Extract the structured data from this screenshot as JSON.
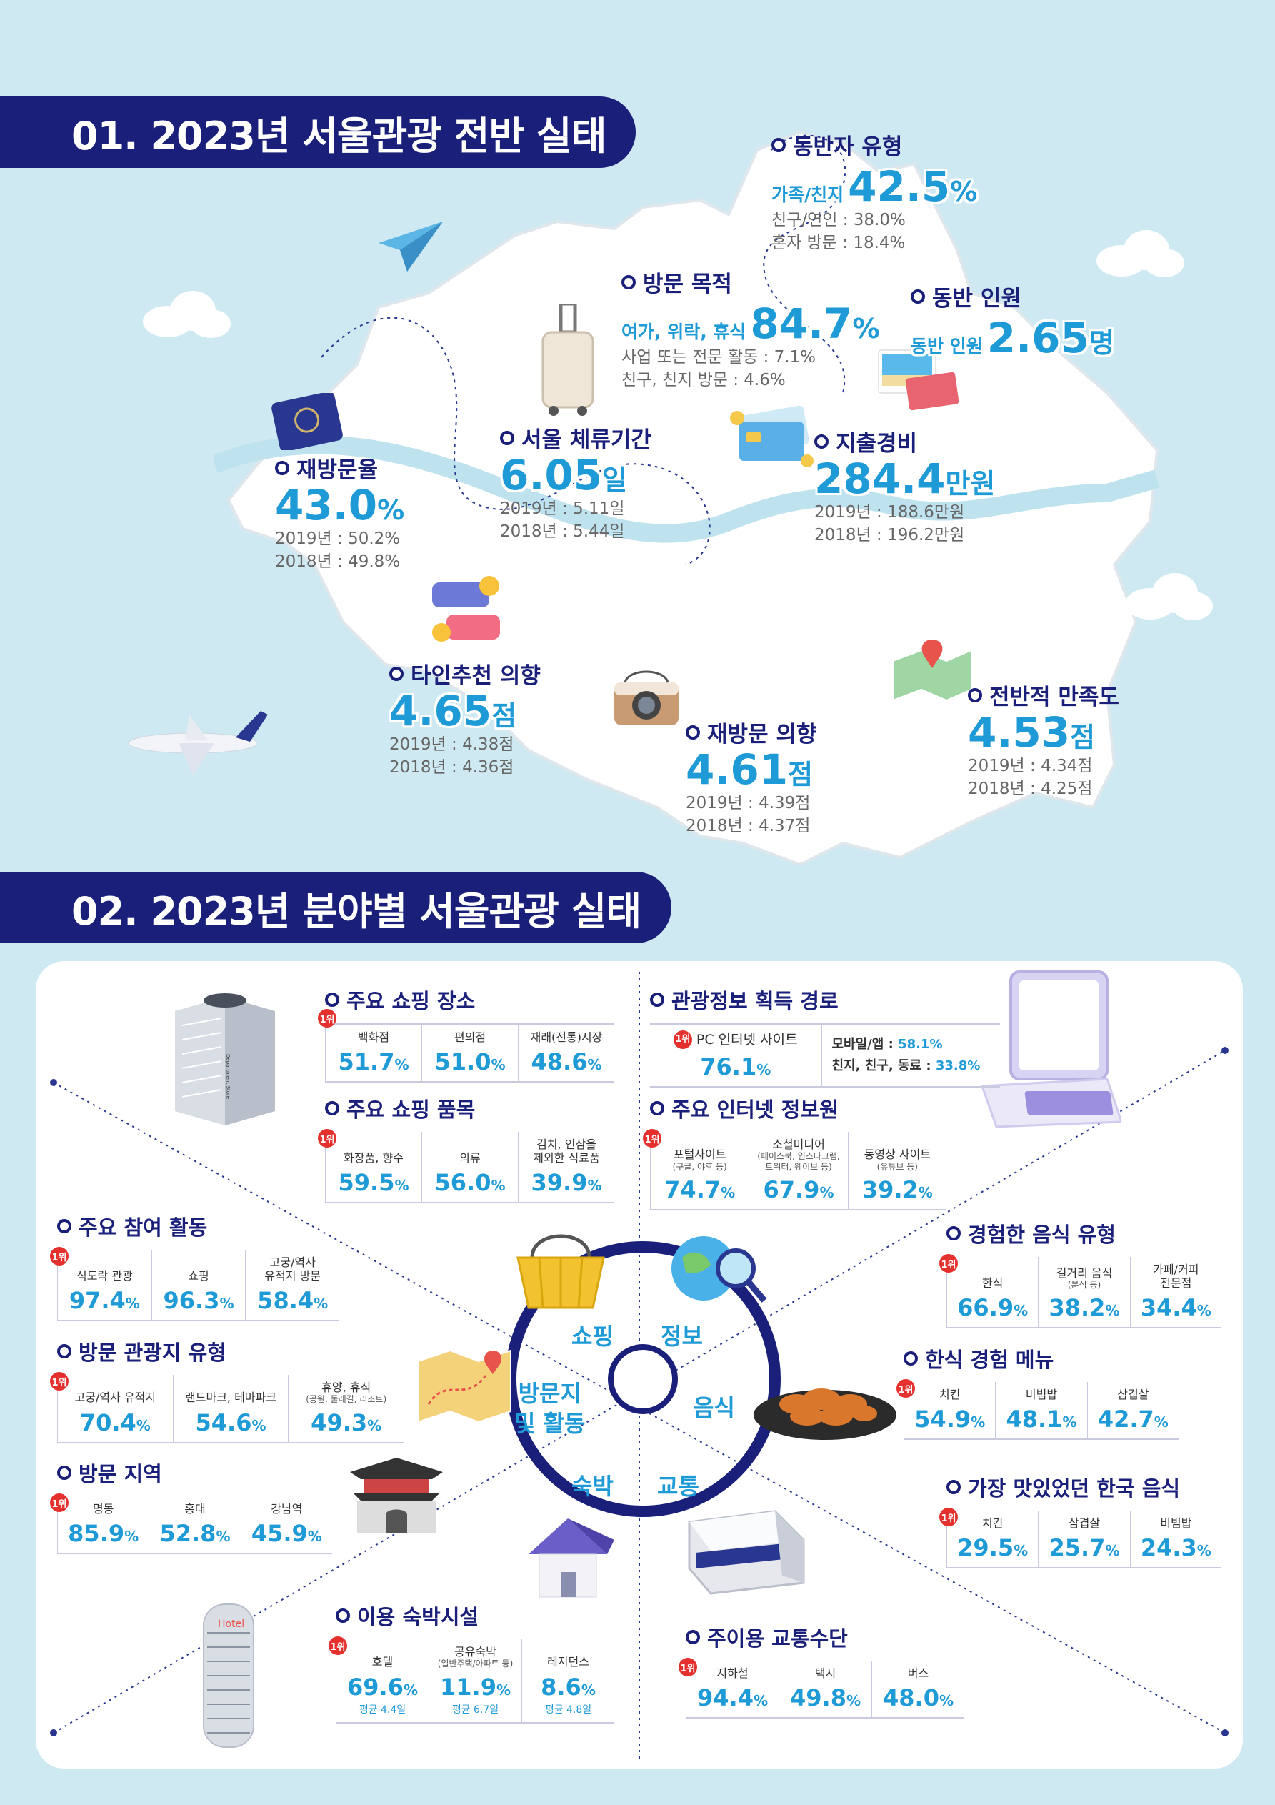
{
  "section1": {
    "header": "01. 2023년 서울관광 전반 실태",
    "companion_type": {
      "title": "동반자 유형",
      "prefix": "가족/친지",
      "value": "42.5",
      "unit": "%",
      "sub1": "친구/연인 : 38.0%",
      "sub2": "혼자 방문 : 18.4%"
    },
    "purpose": {
      "title": "방문 목적",
      "prefix": "여가, 위락, 휴식",
      "value": "84.7",
      "unit": "%",
      "sub1": "사업 또는 전문 활동 : 7.1%",
      "sub2": "친구, 친지 방문 : 4.6%"
    },
    "companions": {
      "title": "동반 인원",
      "prefix": "동반 인원",
      "value": "2.65",
      "unit": "명"
    },
    "stay": {
      "title": "서울 체류기간",
      "value": "6.05",
      "unit": "일",
      "sub1": "2019년 : 5.11일",
      "sub2": "2018년 : 5.44일"
    },
    "expense": {
      "title": "지출경비",
      "value": "284.4",
      "unit": "만원",
      "sub1": "2019년 : 188.6만원",
      "sub2": "2018년 : 196.2만원"
    },
    "revisit_rate": {
      "title": "재방문율",
      "value": "43.0",
      "unit": "%",
      "sub1": "2019년 : 50.2%",
      "sub2": "2018년 : 49.8%"
    },
    "recommend": {
      "title": "타인추천 의향",
      "value": "4.65",
      "unit": "점",
      "sub1": "2019년 : 4.38점",
      "sub2": "2018년 : 4.36점"
    },
    "revisit_intent": {
      "title": "재방문 의향",
      "value": "4.61",
      "unit": "점",
      "sub1": "2019년 : 4.39점",
      "sub2": "2018년 : 4.37점"
    },
    "satisfaction": {
      "title": "전반적 만족도",
      "value": "4.53",
      "unit": "점",
      "sub1": "2019년 : 4.34점",
      "sub2": "2018년 : 4.25점"
    }
  },
  "section2": {
    "header": "02. 2023년 분야별 서울관광 실태",
    "rank_badge": "1위",
    "hotel_sign": "Hotel",
    "dept_sign": "Department Store",
    "ring": {
      "shopping": "쇼핑",
      "info": "정보",
      "visit": "방문지\n및 활동",
      "food": "음식",
      "lodging": "숙박",
      "transport": "교통"
    },
    "shop_place": {
      "title": "주요 쇼핑 장소",
      "items": [
        {
          "label": "백화점",
          "value": "51.7"
        },
        {
          "label": "편의점",
          "value": "51.0"
        },
        {
          "label": "재래(전통)시장",
          "value": "48.6"
        }
      ]
    },
    "shop_item": {
      "title": "주요 쇼핑 품목",
      "items": [
        {
          "label": "화장품, 향수",
          "value": "59.5"
        },
        {
          "label": "의류",
          "value": "56.0"
        },
        {
          "label": "김치, 인삼을\n제외한 식료품",
          "value": "39.9"
        }
      ]
    },
    "info_route": {
      "title": "관광정보 획득 경로",
      "first_label": "PC 인터넷 사이트",
      "first_value": "76.1",
      "mobile": "모바일/앱 : ",
      "mobile_value": "58.1%",
      "friends": "친지, 친구, 동료 : ",
      "friends_value": "33.8%"
    },
    "info_site": {
      "title": "주요 인터넷 정보원",
      "items": [
        {
          "label": "포털사이트",
          "small": "(구글, 야후 등)",
          "value": "74.7"
        },
        {
          "label": "소셜미디어",
          "small": "(페이스북, 인스타그램,\n트위터, 웨이보 등)",
          "value": "67.9"
        },
        {
          "label": "동영상 사이트",
          "small": "(유튜브 등)",
          "value": "39.2"
        }
      ]
    },
    "activity": {
      "title": "주요 참여 활동",
      "items": [
        {
          "label": "식도락 관광",
          "value": "97.4"
        },
        {
          "label": "쇼핑",
          "value": "96.3"
        },
        {
          "label": "고궁/역사\n유적지 방문",
          "value": "58.4"
        }
      ]
    },
    "attraction": {
      "title": "방문 관광지 유형",
      "items": [
        {
          "label": "고궁/역사 유적지",
          "value": "70.4"
        },
        {
          "label": "랜드마크, 테마파크",
          "value": "54.6"
        },
        {
          "label": "휴양, 휴식",
          "small": "(공원, 둘레길, 리조트)",
          "value": "49.3"
        }
      ]
    },
    "area": {
      "title": "방문 지역",
      "items": [
        {
          "label": "명동",
          "value": "85.9"
        },
        {
          "label": "홍대",
          "value": "52.8"
        },
        {
          "label": "강남역",
          "value": "45.9"
        }
      ]
    },
    "food_type": {
      "title": "경험한 음식 유형",
      "items": [
        {
          "label": "한식",
          "value": "66.9"
        },
        {
          "label": "길거리 음식",
          "small": "(분식 등)",
          "value": "38.2"
        },
        {
          "label": "카페/커피\n전문점",
          "value": "34.4"
        }
      ]
    },
    "korean_menu": {
      "title": "한식 경험 메뉴",
      "items": [
        {
          "label": "치킨",
          "value": "54.9"
        },
        {
          "label": "비빔밥",
          "value": "48.1"
        },
        {
          "label": "삼겹살",
          "value": "42.7"
        }
      ]
    },
    "tasty_food": {
      "title": "가장 맛있었던 한국 음식",
      "items": [
        {
          "label": "치킨",
          "value": "29.5"
        },
        {
          "label": "삼겹살",
          "value": "25.7"
        },
        {
          "label": "비빔밥",
          "value": "24.3"
        }
      ]
    },
    "lodging": {
      "title": "이용 숙박시설",
      "items": [
        {
          "label": "호텔",
          "value": "69.6",
          "avg": "평균 4.4일"
        },
        {
          "label": "공유숙박",
          "small": "(일반주택/아파트 등)",
          "value": "11.9",
          "avg": "평균 6.7일"
        },
        {
          "label": "레지던스",
          "value": "8.6",
          "avg": "평균 4.8일"
        }
      ]
    },
    "transport": {
      "title": "주이용 교통수단",
      "items": [
        {
          "label": "지하철",
          "value": "94.4"
        },
        {
          "label": "택시",
          "value": "49.8"
        },
        {
          "label": "버스",
          "value": "48.0"
        }
      ]
    }
  }
}
